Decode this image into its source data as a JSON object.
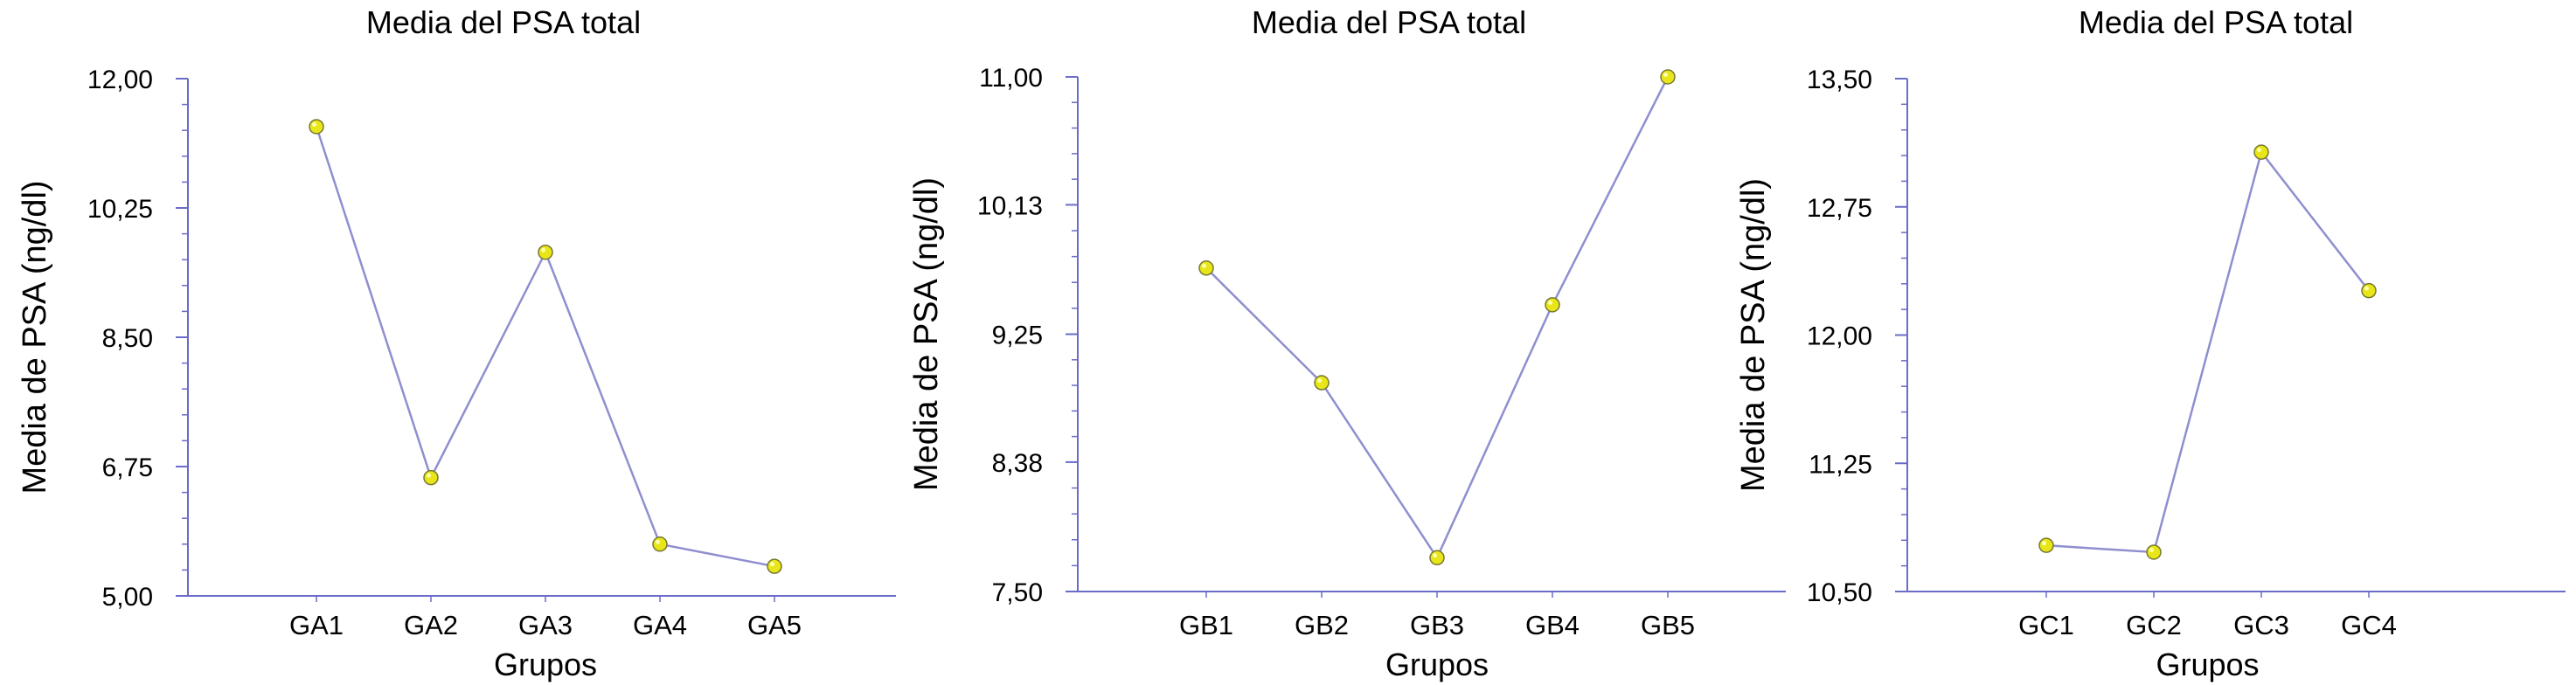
{
  "chart_data": [
    {
      "type": "line",
      "title": "Media del PSA total",
      "xlabel": "Grupos",
      "ylabel": "Media de PSA (ng/dl)",
      "categories": [
        "GA1",
        "GA2",
        "GA3",
        "GA4",
        "GA5"
      ],
      "values": [
        11.35,
        6.6,
        9.65,
        5.7,
        5.4
      ],
      "ylim": [
        5.0,
        12.0
      ],
      "yticks": [
        5.0,
        6.75,
        8.5,
        10.25,
        12.0
      ],
      "ytick_labels": [
        "5,00",
        "6,75",
        "8,50",
        "10,25",
        "12,00"
      ],
      "grid": false,
      "line_color": "#8f8fcf",
      "marker_color": "#e8e619",
      "axis_color": "#6b6bc8"
    },
    {
      "type": "line",
      "title": "Media del PSA total",
      "xlabel": "Grupos",
      "ylabel": "Media de PSA (ng/dl)",
      "categories": [
        "GB1",
        "GB2",
        "GB3",
        "GB4",
        "GB5"
      ],
      "values": [
        9.7,
        8.92,
        7.73,
        9.45,
        11.0
      ],
      "ylim": [
        7.5,
        11.0
      ],
      "yticks": [
        7.5,
        8.38,
        9.25,
        10.13,
        11.0
      ],
      "ytick_labels": [
        "7,50",
        "8,38",
        "9,25",
        "10,13",
        "11,00"
      ],
      "grid": false,
      "line_color": "#8f8fcf",
      "marker_color": "#e8e619",
      "axis_color": "#6b6bc8"
    },
    {
      "type": "line",
      "title": "Media del PSA total",
      "xlabel": "Grupos",
      "ylabel": "Media de PSA (ng/dl)",
      "categories": [
        "GC1",
        "GC2",
        "GC3",
        "GC4"
      ],
      "values": [
        10.77,
        10.73,
        13.07,
        12.26
      ],
      "ylim": [
        10.5,
        13.5
      ],
      "yticks": [
        10.5,
        11.25,
        12.0,
        12.75,
        13.5
      ],
      "ytick_labels": [
        "10,50",
        "11,25",
        "12,00",
        "12,75",
        "13,50"
      ],
      "grid": false,
      "line_color": "#8f8fcf",
      "marker_color": "#e8e619",
      "axis_color": "#6b6bc8"
    }
  ]
}
